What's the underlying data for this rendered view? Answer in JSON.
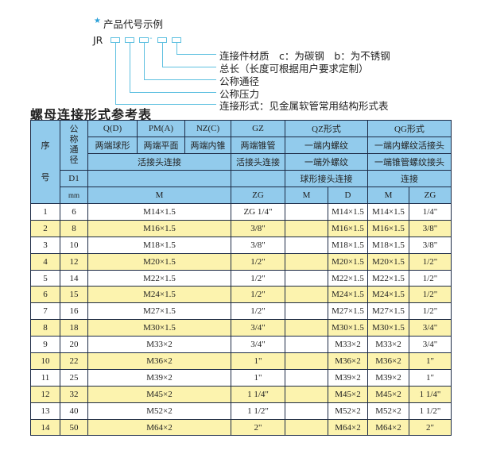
{
  "example": {
    "star_icon": "star-icon",
    "title": "产品代号示例",
    "code_prefix": "JR",
    "separator": "-",
    "legend": [
      "连接件材质　c：为碳钢　b：为不锈钢",
      "总长（长度可根据用户要求定制）",
      "公称通径",
      "公称压力",
      "连接形式：见金属软管常用结构形式表"
    ]
  },
  "table_title": "螺母连接形式参考表",
  "colors": {
    "header_bg": "#92cbec",
    "alt_row_bg": "#fcf3ae",
    "border": "#1c2a45",
    "accent": "#5ec0e0"
  },
  "header": {
    "seq": "序号",
    "nominal": "公称通径",
    "d1": "D1",
    "mm": "mm",
    "qd": "Q(D)",
    "pm": "PM(A)",
    "nz": "NZ(C)",
    "gz": "GZ",
    "qz": "QZ形式",
    "qg": "QG形式",
    "qd_desc": "两端球形",
    "pm_desc": "两端平面",
    "nz_desc": "两端内锥",
    "gz_desc": "两端锥管",
    "qz_desc1": "一端内螺纹",
    "qg_desc1": "一端内螺纹活接头",
    "union1": "活接头连接",
    "union2": "活接头连接",
    "qz_desc2": "一端外螺纹",
    "qg_desc2": "一端锥管螺纹接头",
    "qz_desc3": "球形接头连接",
    "qg_desc3": "连接",
    "m1": "M",
    "zg1": "ZG",
    "qz_m": "M",
    "qz_d": "D",
    "qg_m": "M",
    "qg_zg": "ZG"
  },
  "rows": [
    {
      "no": "1",
      "dn": "6",
      "m": "M14×1.5",
      "zg": "ZG 1/4\"",
      "qz_m": "",
      "qz_d": "M14×1.5",
      "qg_m": "M14×1.5",
      "qg_zg": "1/4\""
    },
    {
      "no": "2",
      "dn": "8",
      "m": "M16×1.5",
      "zg": "3/8\"",
      "qz_m": "",
      "qz_d": "M16×1.5",
      "qg_m": "M16×1.5",
      "qg_zg": "3/8\""
    },
    {
      "no": "3",
      "dn": "10",
      "m": "M18×1.5",
      "zg": "3/8\"",
      "qz_m": "",
      "qz_d": "M18×1.5",
      "qg_m": "M18×1.5",
      "qg_zg": "3/8\""
    },
    {
      "no": "4",
      "dn": "12",
      "m": "M20×1.5",
      "zg": "1/2\"",
      "qz_m": "",
      "qz_d": "M20×1.5",
      "qg_m": "M20×1.5",
      "qg_zg": "1/2\""
    },
    {
      "no": "5",
      "dn": "14",
      "m": "M22×1.5",
      "zg": "1/2\"",
      "qz_m": "",
      "qz_d": "M22×1.5",
      "qg_m": "M22×1.5",
      "qg_zg": "1/2\""
    },
    {
      "no": "6",
      "dn": "15",
      "m": "M24×1.5",
      "zg": "1/2\"",
      "qz_m": "",
      "qz_d": "M24×1.5",
      "qg_m": "M24×1.5",
      "qg_zg": "1/2\""
    },
    {
      "no": "7",
      "dn": "16",
      "m": "M27×1.5",
      "zg": "1/2\"",
      "qz_m": "",
      "qz_d": "M27×1.5",
      "qg_m": "M27×1.5",
      "qg_zg": "1/2\""
    },
    {
      "no": "8",
      "dn": "18",
      "m": "M30×1.5",
      "zg": "3/4\"",
      "qz_m": "",
      "qz_d": "M30×1.5",
      "qg_m": "M30×1.5",
      "qg_zg": "3/4\""
    },
    {
      "no": "9",
      "dn": "20",
      "m": "M33×2",
      "zg": "3/4\"",
      "qz_m": "",
      "qz_d": "M33×2",
      "qg_m": "M33×2",
      "qg_zg": "3/4\""
    },
    {
      "no": "10",
      "dn": "22",
      "m": "M36×2",
      "zg": "1\"",
      "qz_m": "",
      "qz_d": "M36×2",
      "qg_m": "M36×2",
      "qg_zg": "1\""
    },
    {
      "no": "11",
      "dn": "25",
      "m": "M39×2",
      "zg": "1\"",
      "qz_m": "",
      "qz_d": "M39×2",
      "qg_m": "M39×2",
      "qg_zg": "1\""
    },
    {
      "no": "12",
      "dn": "32",
      "m": "M45×2",
      "zg": "1 1/4\"",
      "qz_m": "",
      "qz_d": "M45×2",
      "qg_m": "M45×2",
      "qg_zg": "1 1/4\""
    },
    {
      "no": "13",
      "dn": "40",
      "m": "M52×2",
      "zg": "1 1/2\"",
      "qz_m": "",
      "qz_d": "M52×2",
      "qg_m": "M52×2",
      "qg_zg": "1 1/2\""
    },
    {
      "no": "14",
      "dn": "50",
      "m": "M64×2",
      "zg": "2\"",
      "qz_m": "",
      "qz_d": "M64×2",
      "qg_m": "M64×2",
      "qg_zg": "2\""
    }
  ]
}
